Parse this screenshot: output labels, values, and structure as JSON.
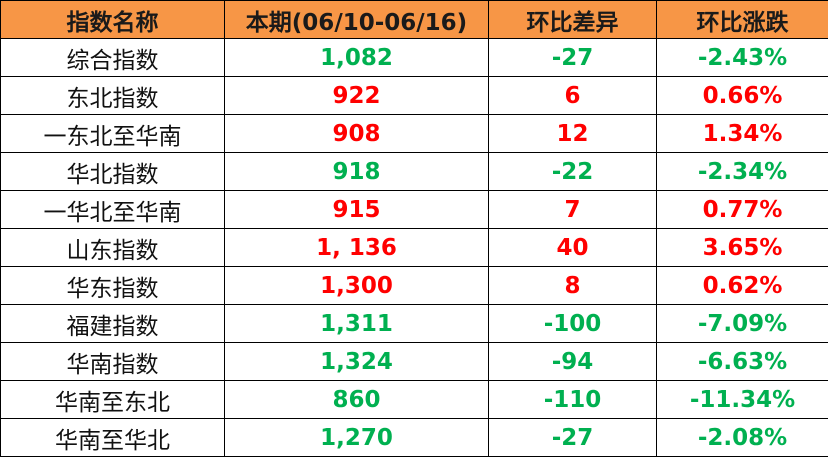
{
  "headers": [
    "指数名称",
    "本期(06/10-06/16)",
    "环比差异",
    "环比涨跌"
  ],
  "colors": {
    "header_bg": "#F79646",
    "up": "#FF0000",
    "down": "#00B050"
  },
  "rows": [
    {
      "name": "综合指数",
      "value": "1,082",
      "diff": "-27",
      "pct": "-2.43%",
      "trend": "down"
    },
    {
      "name": "东北指数",
      "value": "922",
      "diff": "6",
      "pct": "0.66%",
      "trend": "up"
    },
    {
      "name": "一东北至华南",
      "value": "908",
      "diff": "12",
      "pct": "1.34%",
      "trend": "up"
    },
    {
      "name": "华北指数",
      "value": "918",
      "diff": "-22",
      "pct": "-2.34%",
      "trend": "down"
    },
    {
      "name": "一华北至华南",
      "value": "915",
      "diff": "7",
      "pct": "0.77%",
      "trend": "up"
    },
    {
      "name": "山东指数",
      "value": "1, 136",
      "diff": "40",
      "pct": "3.65%",
      "trend": "up"
    },
    {
      "name": "华东指数",
      "value": "1,300",
      "diff": "8",
      "pct": "0.62%",
      "trend": "up"
    },
    {
      "name": "福建指数",
      "value": "1,311",
      "diff": "-100",
      "pct": "-7.09%",
      "trend": "down"
    },
    {
      "name": "华南指数",
      "value": "1,324",
      "diff": "-94",
      "pct": "-6.63%",
      "trend": "down"
    },
    {
      "name": "华南至东北",
      "value": "860",
      "diff": "-110",
      "pct": "-11.34%",
      "trend": "down"
    },
    {
      "name": "华南至华北",
      "value": "1,270",
      "diff": "-27",
      "pct": "-2.08%",
      "trend": "down"
    }
  ]
}
